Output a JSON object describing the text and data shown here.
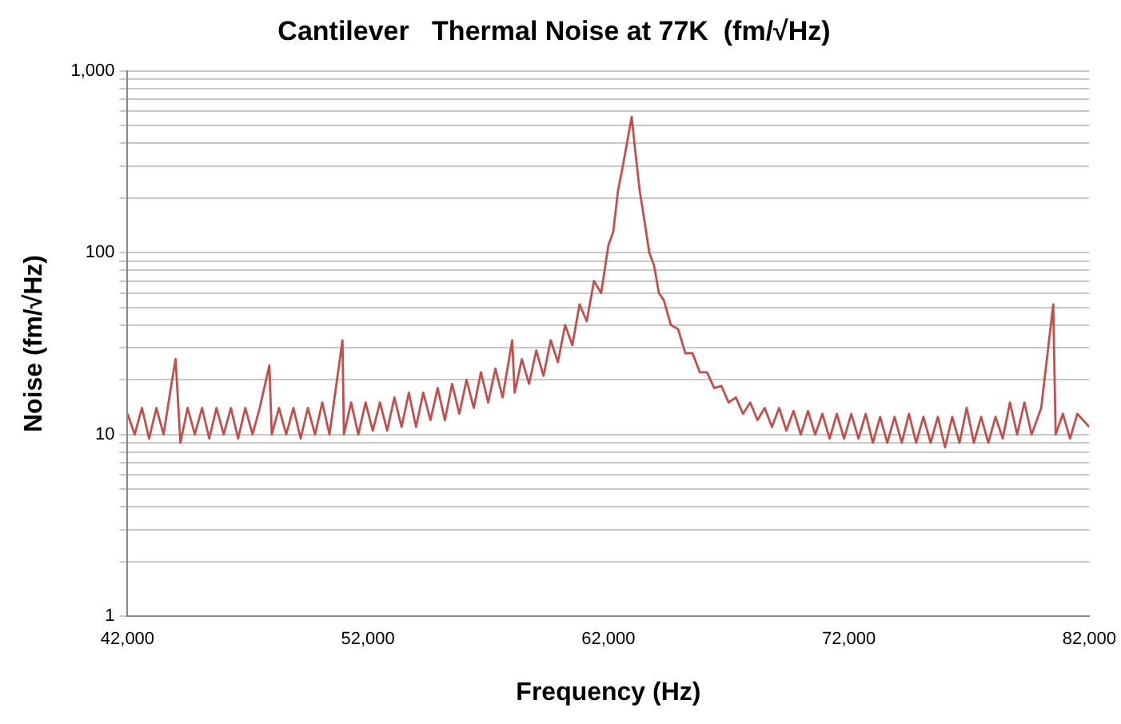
{
  "chart_data": {
    "type": "line",
    "title": "Cantilever   Thermal Noise at 77K  (fm/√Hz)",
    "xlabel": "Frequency (Hz)",
    "ylabel": "Noise (fm/√Hz)",
    "log": "y",
    "grid": "y",
    "legend": false,
    "marker": "none",
    "line_style": "solid",
    "xlim": [
      42000,
      82000
    ],
    "xticks": [
      {
        "value": 42000,
        "label": "42,000"
      },
      {
        "value": 52000,
        "label": "52,000"
      },
      {
        "value": 62000,
        "label": "62,000"
      },
      {
        "value": 72000,
        "label": "72,000"
      },
      {
        "value": 82000,
        "label": "82,000"
      }
    ],
    "ylim": [
      1,
      1000
    ],
    "yticks": [
      1,
      {
        "value": 2,
        "label": null
      },
      {
        "value": 3,
        "label": null
      },
      {
        "value": 4,
        "label": null
      },
      {
        "value": 5,
        "label": null
      },
      {
        "value": 6,
        "label": null
      },
      {
        "value": 7,
        "label": null
      },
      {
        "value": 8,
        "label": null
      },
      {
        "value": 9,
        "label": null
      },
      10,
      {
        "value": 20,
        "label": null
      },
      {
        "value": 30,
        "label": null
      },
      {
        "value": 40,
        "label": null
      },
      {
        "value": 50,
        "label": null
      },
      {
        "value": 60,
        "label": null
      },
      {
        "value": 70,
        "label": null
      },
      {
        "value": 80,
        "label": null
      },
      {
        "value": 90,
        "label": null
      },
      100,
      {
        "value": 200,
        "label": null
      },
      {
        "value": 300,
        "label": null
      },
      {
        "value": 400,
        "label": null
      },
      {
        "value": 500,
        "label": null
      },
      {
        "value": 600,
        "label": null
      },
      {
        "value": 700,
        "label": null
      },
      {
        "value": 800,
        "label": null
      },
      {
        "value": 900,
        "label": null
      },
      {
        "value": 1000,
        "label": "1,000"
      }
    ],
    "x": [
      42000,
      42300,
      42600,
      42900,
      43200,
      43500,
      43800,
      44000,
      44200,
      44500,
      44800,
      45100,
      45400,
      45700,
      46000,
      46300,
      46600,
      46900,
      47200,
      47500,
      47900,
      48000,
      48300,
      48600,
      48900,
      49200,
      49500,
      49800,
      50100,
      50400,
      50940,
      51000,
      51300,
      51600,
      51900,
      52200,
      52500,
      52800,
      53100,
      53400,
      53700,
      54000,
      54300,
      54600,
      54900,
      55200,
      55500,
      55800,
      56100,
      56400,
      56700,
      57000,
      57300,
      57600,
      58000,
      58100,
      58400,
      58700,
      59000,
      59300,
      59600,
      59900,
      60200,
      60500,
      60800,
      61100,
      61400,
      61700,
      62000,
      62200,
      62400,
      62600,
      62800,
      62970,
      63100,
      63300,
      63500,
      63700,
      63900,
      64100,
      64300,
      64600,
      64900,
      65200,
      65500,
      65800,
      66100,
      66400,
      66700,
      67000,
      67300,
      67600,
      67900,
      68200,
      68500,
      68800,
      69100,
      69400,
      69700,
      70000,
      70300,
      70600,
      70900,
      71200,
      71500,
      71800,
      72100,
      72400,
      72700,
      73000,
      73300,
      73600,
      73900,
      74200,
      74500,
      74800,
      75100,
      75400,
      75700,
      76000,
      76300,
      76600,
      76900,
      77200,
      77500,
      77800,
      78100,
      78400,
      78700,
      79000,
      79300,
      79600,
      80000,
      80500,
      80600,
      80900,
      81200,
      81500,
      82000
    ],
    "series": [
      {
        "color": "#c0504d",
        "values": [
          13,
          10,
          14,
          9.5,
          14,
          10,
          18,
          26,
          9,
          14,
          10,
          14,
          9.5,
          14,
          10,
          14,
          9.5,
          14,
          10,
          14,
          24,
          10,
          14,
          10,
          14,
          9.5,
          14,
          10,
          15,
          10,
          33,
          10,
          15,
          10,
          15,
          10.5,
          15,
          10.5,
          16,
          11,
          17,
          11,
          17,
          12,
          18,
          12,
          19,
          13,
          20,
          14,
          22,
          15,
          23,
          16,
          33,
          17,
          26,
          19,
          29,
          21,
          33,
          25,
          40,
          31,
          52,
          42,
          70,
          60,
          110,
          130,
          220,
          300,
          420,
          560,
          380,
          220,
          150,
          100,
          85,
          60,
          55,
          40,
          38,
          28,
          28,
          22,
          22,
          18,
          18.5,
          15,
          16,
          13,
          15,
          12,
          14,
          11,
          14,
          10.5,
          13.5,
          10,
          13.5,
          10,
          13,
          9.5,
          13,
          9.5,
          13,
          9.5,
          13,
          9,
          12.5,
          9,
          12.5,
          9,
          13,
          9,
          12.5,
          9,
          12.5,
          8.5,
          12.5,
          9,
          14,
          9,
          12.5,
          9,
          12.5,
          9.5,
          15,
          10,
          15,
          10,
          14,
          52,
          10,
          13,
          9.5,
          13,
          11
        ]
      }
    ]
  }
}
